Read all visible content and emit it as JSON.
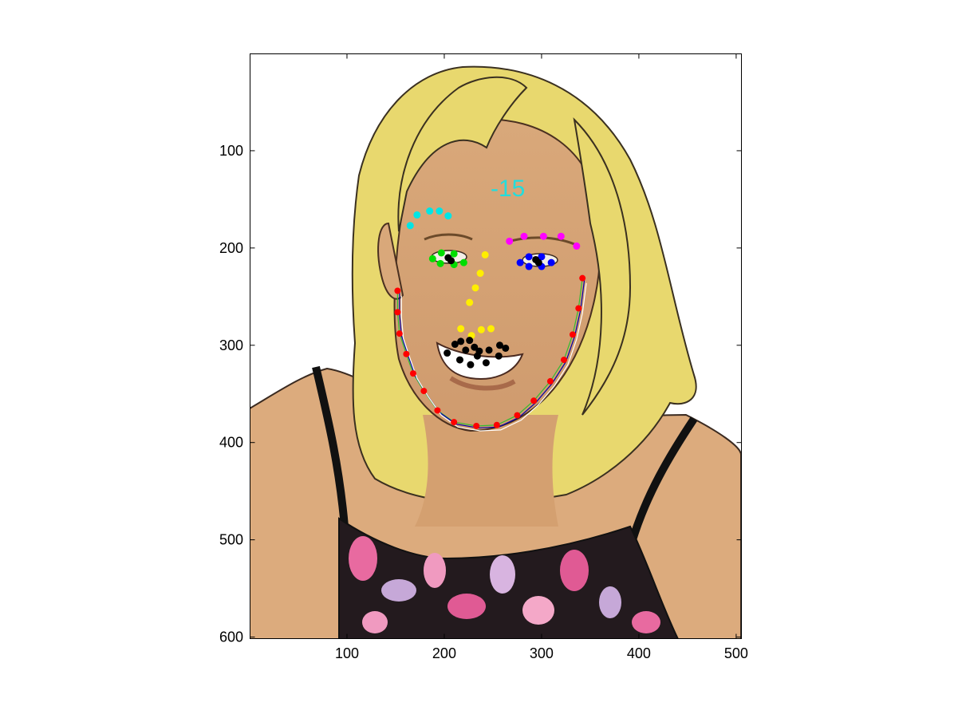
{
  "figure": {
    "pose_label": "-15",
    "pose_label_color": "#22dddd",
    "x_ticks": [
      100,
      200,
      300,
      400,
      500
    ],
    "y_ticks": [
      100,
      200,
      300,
      400,
      500,
      600
    ],
    "x_tick_labels": [
      "100",
      "200",
      "300",
      "400",
      "500"
    ],
    "y_tick_labels": [
      "100",
      "200",
      "300",
      "400",
      "500",
      "600"
    ]
  },
  "landmarks": {
    "left_brow": {
      "color": "#00e5e5",
      "points": [
        [
          165,
          177
        ],
        [
          172,
          166
        ],
        [
          185,
          162
        ],
        [
          195,
          162
        ],
        [
          204,
          167
        ]
      ]
    },
    "right_brow": {
      "color": "#ff00ff",
      "points": [
        [
          267,
          193
        ],
        [
          282,
          188
        ],
        [
          302,
          188
        ],
        [
          320,
          188
        ],
        [
          336,
          198
        ]
      ]
    },
    "left_eye": {
      "color": "#00dd00",
      "points": [
        [
          188,
          211
        ],
        [
          197,
          205
        ],
        [
          210,
          206
        ],
        [
          220,
          215
        ],
        [
          210,
          217
        ],
        [
          196,
          216
        ]
      ]
    },
    "right_eye": {
      "color": "#0000ff",
      "points": [
        [
          278,
          215
        ],
        [
          287,
          209
        ],
        [
          300,
          209
        ],
        [
          310,
          215
        ],
        [
          300,
          219
        ],
        [
          287,
          219
        ]
      ]
    },
    "left_pupil": {
      "color": "#000000",
      "points": [
        [
          204,
          210
        ],
        [
          207,
          213
        ]
      ]
    },
    "right_pupil": {
      "color": "#000000",
      "points": [
        [
          294,
          212
        ],
        [
          297,
          215
        ]
      ]
    },
    "nose": {
      "color": "#ffee00",
      "points": [
        [
          242,
          207
        ],
        [
          237,
          226
        ],
        [
          232,
          241
        ],
        [
          226,
          256
        ],
        [
          217,
          283
        ],
        [
          228,
          290
        ],
        [
          238,
          284
        ],
        [
          248,
          283
        ]
      ]
    },
    "mouth": {
      "color": "#000000",
      "points": [
        [
          203,
          308
        ],
        [
          211,
          299
        ],
        [
          217,
          296
        ],
        [
          226,
          295
        ],
        [
          231,
          302
        ],
        [
          236,
          306
        ],
        [
          246,
          305
        ],
        [
          257,
          300
        ],
        [
          263,
          303
        ],
        [
          256,
          311
        ],
        [
          243,
          318
        ],
        [
          227,
          320
        ],
        [
          216,
          315
        ],
        [
          222,
          305
        ],
        [
          234,
          311
        ]
      ]
    },
    "jaw": {
      "color": "#ff0000",
      "points": [
        [
          152,
          244
        ],
        [
          152,
          266
        ],
        [
          154,
          288
        ],
        [
          161,
          309
        ],
        [
          168,
          329
        ],
        [
          179,
          347
        ],
        [
          193,
          367
        ],
        [
          210,
          379
        ],
        [
          233,
          383
        ],
        [
          254,
          382
        ],
        [
          275,
          372
        ],
        [
          292,
          357
        ],
        [
          309,
          337
        ],
        [
          323,
          315
        ],
        [
          332,
          289
        ],
        [
          338,
          262
        ],
        [
          342,
          231
        ]
      ]
    },
    "jaw_fit_green": {
      "color": "#33bb33"
    },
    "jaw_fit_blue": {
      "color": "#0000aa"
    },
    "jaw_fit_white": {
      "color": "#ffffff"
    }
  }
}
